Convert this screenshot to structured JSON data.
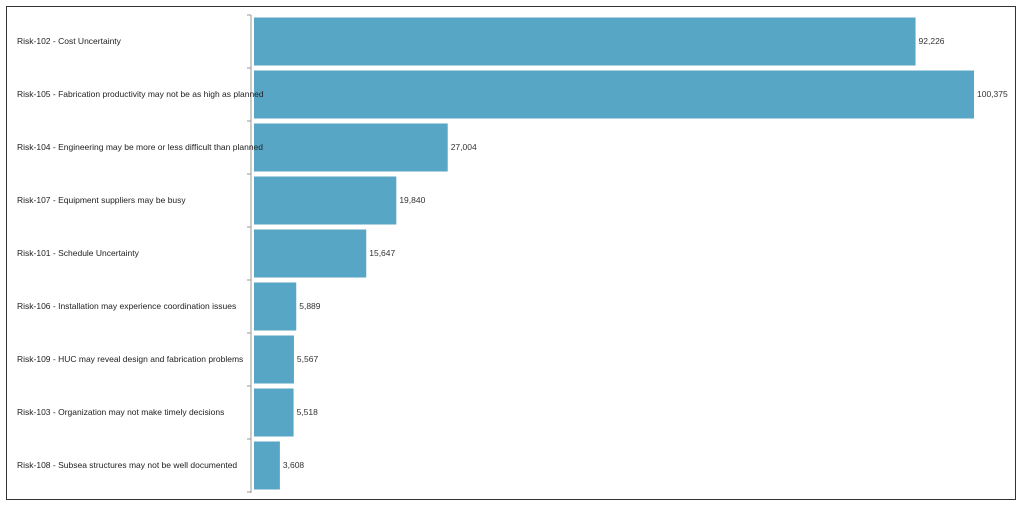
{
  "chart_data": {
    "type": "bar",
    "orientation": "horizontal",
    "title": "",
    "xlabel": "",
    "ylabel": "",
    "grid": false,
    "bar_color": "#58A6C6",
    "categories": [
      "Risk-102 - Cost Uncertainty",
      "Risk-105 - Fabrication productivity may not be as high as planned",
      "Risk-104 - Engineering may be more or less difficult than planned",
      "Risk-107 - Equipment suppliers may be busy",
      "Risk-101 - Schedule Uncertainty",
      "Risk-106 - Installation may experience coordination issues",
      "Risk-109 - HUC may reveal design and fabrication problems",
      "Risk-103 - Organization may not make timely decisions",
      "Risk-108 - Subsea structures may not be well documented"
    ],
    "values": [
      92226,
      100375,
      27004,
      19840,
      15647,
      5889,
      5567,
      5518,
      3608
    ],
    "value_labels": [
      "92,226",
      "100,375",
      "27,004",
      "19,840",
      "15,647",
      "5,889",
      "5,567",
      "5,518",
      "3,608"
    ],
    "xlim": [
      0,
      100375
    ]
  }
}
